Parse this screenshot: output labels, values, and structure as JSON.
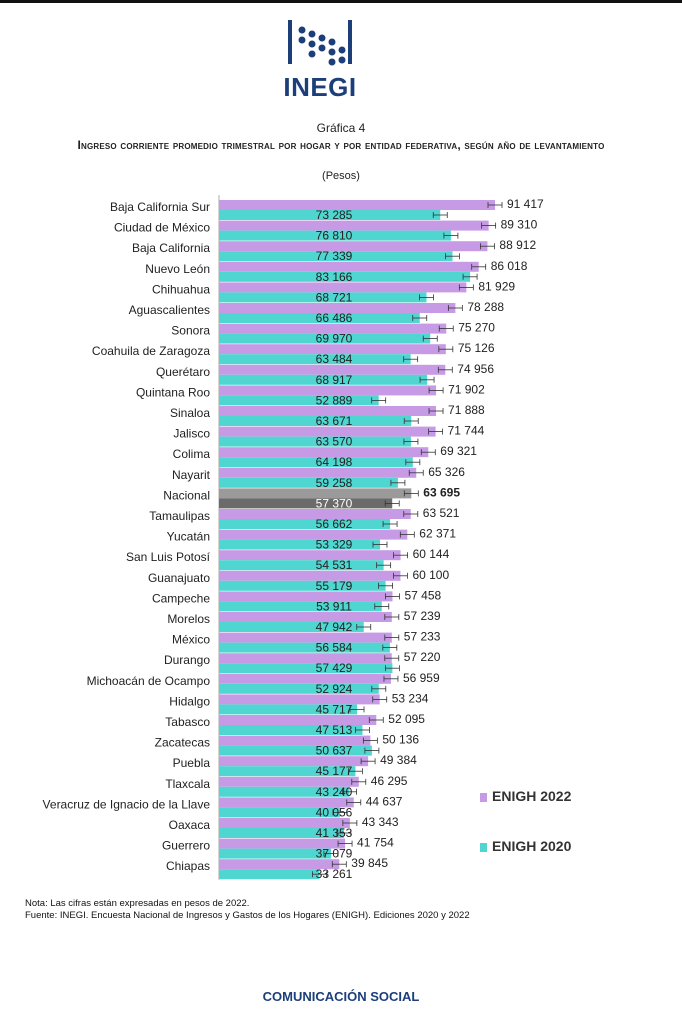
{
  "logo": {
    "text": "INEGI"
  },
  "header": {
    "figure_label": "Gráfica 4",
    "title": "Ingreso corriente promedio trimestral por hogar y por entidad federativa, según año de levantamiento",
    "units": "(Pesos)"
  },
  "chart_data": {
    "type": "bar",
    "orientation": "horizontal",
    "categories": [
      "Baja California Sur",
      "Ciudad de México",
      "Baja California",
      "Nuevo León",
      "Chihuahua",
      "Aguascalientes",
      "Sonora",
      "Coahuila de Zaragoza",
      "Querétaro",
      "Quintana Roo",
      "Sinaloa",
      "Jalisco",
      "Colima",
      "Nayarit",
      "Nacional",
      "Tamaulipas",
      "Yucatán",
      "San Luis Potosí",
      "Guanajuato",
      "Campeche",
      "Morelos",
      "México",
      "Durango",
      "Michoacán de Ocampo",
      "Hidalgo",
      "Tabasco",
      "Zacatecas",
      "Puebla",
      "Tlaxcala",
      "Veracruz de Ignacio de la Llave",
      "Oaxaca",
      "Guerrero",
      "Chiapas"
    ],
    "series": [
      {
        "name": "ENIGH 2022",
        "color": "#c79ae6",
        "values": [
          91417,
          89310,
          88912,
          86018,
          81929,
          78288,
          75270,
          75126,
          74956,
          71902,
          71888,
          71744,
          69321,
          65326,
          63695,
          63521,
          62371,
          60144,
          60100,
          57458,
          57239,
          57233,
          57220,
          56959,
          53234,
          52095,
          50136,
          49384,
          46295,
          44637,
          43343,
          41754,
          39845
        ],
        "labels": [
          "91 417",
          "89 310",
          "88 912",
          "86 018",
          "81 929",
          "78 288",
          "75 270",
          "75 126",
          "74 956",
          "71 902",
          "71 888",
          "71 744",
          "69 321",
          "65 326",
          "63 695",
          "63 521",
          "62 371",
          "60 144",
          "60 100",
          "57 458",
          "57 239",
          "57 233",
          "57 220",
          "56 959",
          "53 234",
          "52 095",
          "50 136",
          "49 384",
          "46 295",
          "44 637",
          "43 343",
          "41 754",
          "39 845"
        ]
      },
      {
        "name": "ENIGH 2020",
        "color": "#4fd6d0",
        "values": [
          73285,
          76810,
          77339,
          83166,
          68721,
          66486,
          69970,
          63484,
          68917,
          52889,
          63671,
          63570,
          64198,
          59258,
          57370,
          56662,
          53329,
          54531,
          55179,
          53911,
          47942,
          56584,
          57429,
          52924,
          45717,
          47513,
          50637,
          45177,
          43240,
          40056,
          41353,
          37079,
          33261
        ],
        "labels": [
          "73 285",
          "76 810",
          "77 339",
          "83 166",
          "68 721",
          "66 486",
          "69 970",
          "63 484",
          "68 917",
          "52 889",
          "63 671",
          "63 570",
          "64 198",
          "59 258",
          "57 370",
          "56 662",
          "53 329",
          "54 531",
          "55 179",
          "53 911",
          "47 942",
          "56 584",
          "57 429",
          "52 924",
          "45 717",
          "47 513",
          "50 637",
          "45 177",
          "43 240",
          "40 056",
          "41 353",
          "37 079",
          "33 261"
        ]
      }
    ],
    "highlight_category": "Nacional",
    "highlight_colors": {
      "ENIGH 2022": "#9a9a9a",
      "ENIGH 2020": "#6b6b6b"
    },
    "error_bars": true,
    "xlim": [
      0,
      95000
    ],
    "legend": "right"
  },
  "notes": {
    "note": "Nota: Las cifras están expresadas en pesos de 2022.",
    "source": "Fuente: INEGI. Encuesta Nacional de Ingresos y Gastos de los Hogares (ENIGH). Ediciones 2020 y 2022"
  },
  "footer": {
    "text": "COMUNICACIÓN SOCIAL"
  }
}
